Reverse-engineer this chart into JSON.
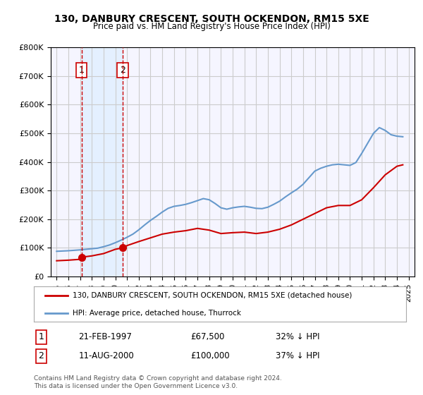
{
  "title": "130, DANBURY CRESCENT, SOUTH OCKENDON, RM15 5XE",
  "subtitle": "Price paid vs. HM Land Registry's House Price Index (HPI)",
  "legend_line1": "130, DANBURY CRESCENT, SOUTH OCKENDON, RM15 5XE (detached house)",
  "legend_line2": "HPI: Average price, detached house, Thurrock",
  "sale1_label": "1",
  "sale1_date": "21-FEB-1997",
  "sale1_price": "£67,500",
  "sale1_pct": "32% ↓ HPI",
  "sale2_label": "2",
  "sale2_date": "11-AUG-2000",
  "sale2_price": "£100,000",
  "sale2_pct": "37% ↓ HPI",
  "footnote": "Contains HM Land Registry data © Crown copyright and database right 2024.\nThis data is licensed under the Open Government Licence v3.0.",
  "ylim": [
    0,
    800000
  ],
  "yticks": [
    0,
    100000,
    200000,
    300000,
    400000,
    500000,
    600000,
    700000,
    800000
  ],
  "xlim_start": 1994.5,
  "xlim_end": 2025.5,
  "sale1_x": 1997.13,
  "sale2_x": 2000.62,
  "sale1_y": 67500,
  "sale2_y": 100000,
  "red_color": "#cc0000",
  "blue_color": "#6699cc",
  "blue_shade": "#ddeeff",
  "grid_color": "#cccccc",
  "bg_color": "#f5f5ff",
  "hpi_x": [
    1995.0,
    1995.5,
    1996.0,
    1996.5,
    1997.0,
    1997.5,
    1998.0,
    1998.5,
    1999.0,
    1999.5,
    2000.0,
    2000.5,
    2001.0,
    2001.5,
    2002.0,
    2002.5,
    2003.0,
    2003.5,
    2004.0,
    2004.5,
    2005.0,
    2005.5,
    2006.0,
    2006.5,
    2007.0,
    2007.5,
    2008.0,
    2008.5,
    2009.0,
    2009.5,
    2010.0,
    2010.5,
    2011.0,
    2011.5,
    2012.0,
    2012.5,
    2013.0,
    2013.5,
    2014.0,
    2014.5,
    2015.0,
    2015.5,
    2016.0,
    2016.5,
    2017.0,
    2017.5,
    2018.0,
    2018.5,
    2019.0,
    2019.5,
    2020.0,
    2020.5,
    2021.0,
    2021.5,
    2022.0,
    2022.5,
    2023.0,
    2023.5,
    2024.0,
    2024.5
  ],
  "hpi_y": [
    88000,
    89000,
    90000,
    91500,
    93000,
    95000,
    97000,
    99000,
    104000,
    110000,
    118000,
    127000,
    137000,
    148000,
    163000,
    180000,
    196000,
    210000,
    225000,
    238000,
    245000,
    248000,
    252000,
    258000,
    265000,
    272000,
    268000,
    255000,
    240000,
    235000,
    240000,
    243000,
    245000,
    242000,
    238000,
    237000,
    242000,
    252000,
    263000,
    278000,
    292000,
    305000,
    322000,
    345000,
    368000,
    378000,
    385000,
    390000,
    392000,
    390000,
    388000,
    398000,
    430000,
    465000,
    500000,
    520000,
    510000,
    495000,
    490000,
    488000
  ],
  "price_x": [
    1995.0,
    1996.0,
    1997.0,
    1997.13,
    1998.0,
    1999.0,
    2000.0,
    2000.62,
    2001.0,
    2002.0,
    2003.0,
    2004.0,
    2005.0,
    2006.0,
    2007.0,
    2008.0,
    2009.0,
    2010.0,
    2011.0,
    2012.0,
    2013.0,
    2014.0,
    2015.0,
    2016.0,
    2017.0,
    2018.0,
    2019.0,
    2020.0,
    2021.0,
    2022.0,
    2023.0,
    2024.0,
    2024.5
  ],
  "price_y": [
    55000,
    57000,
    60000,
    67500,
    72000,
    80000,
    95000,
    100000,
    108000,
    122000,
    135000,
    148000,
    155000,
    160000,
    168000,
    162000,
    150000,
    153000,
    155000,
    150000,
    155000,
    165000,
    180000,
    200000,
    220000,
    240000,
    248000,
    248000,
    268000,
    310000,
    355000,
    385000,
    390000
  ]
}
